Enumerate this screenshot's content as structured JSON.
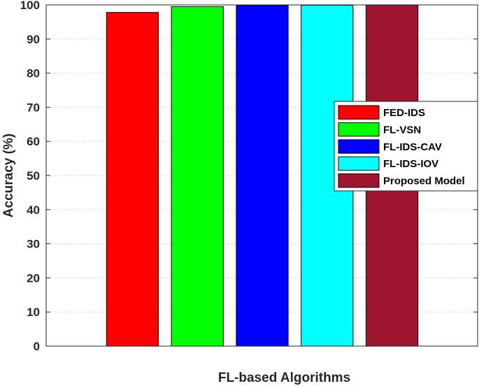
{
  "chart_data": {
    "type": "bar",
    "title": "",
    "xlabel": "FL-based Algorithms",
    "ylabel": "Accuracy (%)",
    "ylim": [
      0,
      100
    ],
    "yticks": [
      0,
      10,
      20,
      30,
      40,
      50,
      60,
      70,
      80,
      90,
      100
    ],
    "grid": true,
    "legend_position": "right",
    "series": [
      {
        "name": "FED-IDS",
        "value": 97.8,
        "color": "#ff0000"
      },
      {
        "name": "FL-VSN",
        "value": 99.5,
        "color": "#00ff00"
      },
      {
        "name": "FL-IDS-CAV",
        "value": 99.9,
        "color": "#0000ff"
      },
      {
        "name": "FL-IDS-IOV",
        "value": 99.9,
        "color": "#00ffff"
      },
      {
        "name": "Proposed Model",
        "value": 99.95,
        "color": "#a01530"
      }
    ]
  }
}
